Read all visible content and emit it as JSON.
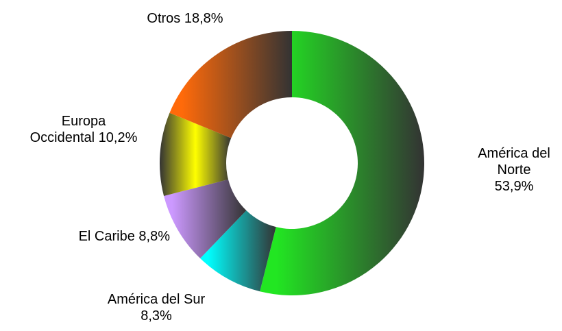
{
  "chart_data": {
    "type": "donut",
    "categories": [
      "América del Norte",
      "América del Sur",
      "El Caribe",
      "Europa Occidental",
      "Otros"
    ],
    "values": [
      53.9,
      8.3,
      8.8,
      10.2,
      18.8
    ],
    "value_labels": [
      "53,9%",
      "8,3%",
      "8,8%",
      "10,2%",
      "18,8%"
    ],
    "colors": [
      "#22e622",
      "#00ffff",
      "#cc99ff",
      "#ffff00",
      "#ff6a0a"
    ]
  }
}
